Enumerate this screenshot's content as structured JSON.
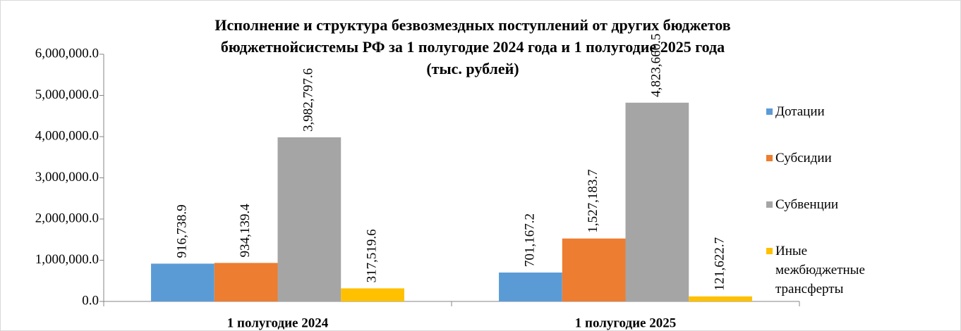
{
  "chart_data": {
    "type": "bar",
    "title": [
      "Исполнение и структура безвозмездных поступлений от других бюджетов",
      "бюджетнойсистемы РФ за 1 полугодие 2024 года и 1 полугодие 2025 года",
      "(тыс. рублей)"
    ],
    "categories": [
      "1 полугодие 2024",
      "1 полугодие 2025"
    ],
    "series": [
      {
        "name": "Дотации",
        "color": "#5b9bd5",
        "values": [
          916738.9,
          701167.2
        ],
        "value_labels": [
          "916,738.9",
          "701,167.2"
        ]
      },
      {
        "name": "Субсидии",
        "color": "#ed7d31",
        "values": [
          934139.4,
          1527183.7
        ],
        "value_labels": [
          "934,139.4",
          "1,527,183.7"
        ]
      },
      {
        "name": "Субвенции",
        "color": "#a5a5a5",
        "values": [
          3982797.6,
          4823660.5
        ],
        "value_labels": [
          "3,982,797.6",
          "4,823,660.5"
        ]
      },
      {
        "name": "Иные межбюджетные трансферты",
        "color": "#ffc000",
        "values": [
          317519.6,
          121622.7
        ],
        "value_labels": [
          "317,519.6",
          "121,622.7"
        ]
      }
    ],
    "ylim": [
      0,
      6000000
    ],
    "yticks": [
      {
        "value": 0,
        "label": "0.0"
      },
      {
        "value": 1000000,
        "label": "1,000,000.0"
      },
      {
        "value": 2000000,
        "label": "2,000,000.0"
      },
      {
        "value": 3000000,
        "label": "3,000,000.0"
      },
      {
        "value": 4000000,
        "label": "4,000,000.0"
      },
      {
        "value": 5000000,
        "label": "5,000,000.0"
      },
      {
        "value": 6000000,
        "label": "6,000,000.0"
      }
    ],
    "legend": "right"
  }
}
